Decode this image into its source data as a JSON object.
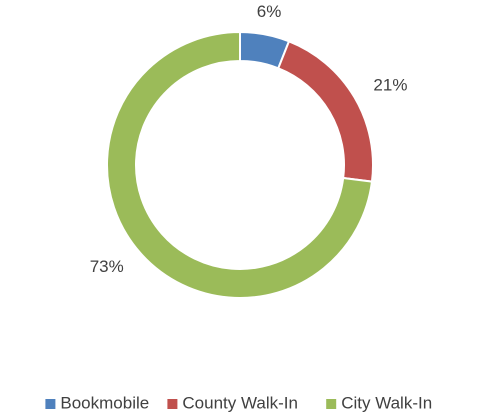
{
  "chart_data": {
    "type": "donut",
    "categories": [
      "Bookmobile",
      "County Walk-In",
      "City Walk-In"
    ],
    "values": [
      6,
      21,
      73
    ],
    "value_labels": [
      "6%",
      "21%",
      "73%"
    ],
    "colors": [
      "#4f81bd",
      "#c0504d",
      "#9bbb59"
    ],
    "legend": "bottom"
  }
}
